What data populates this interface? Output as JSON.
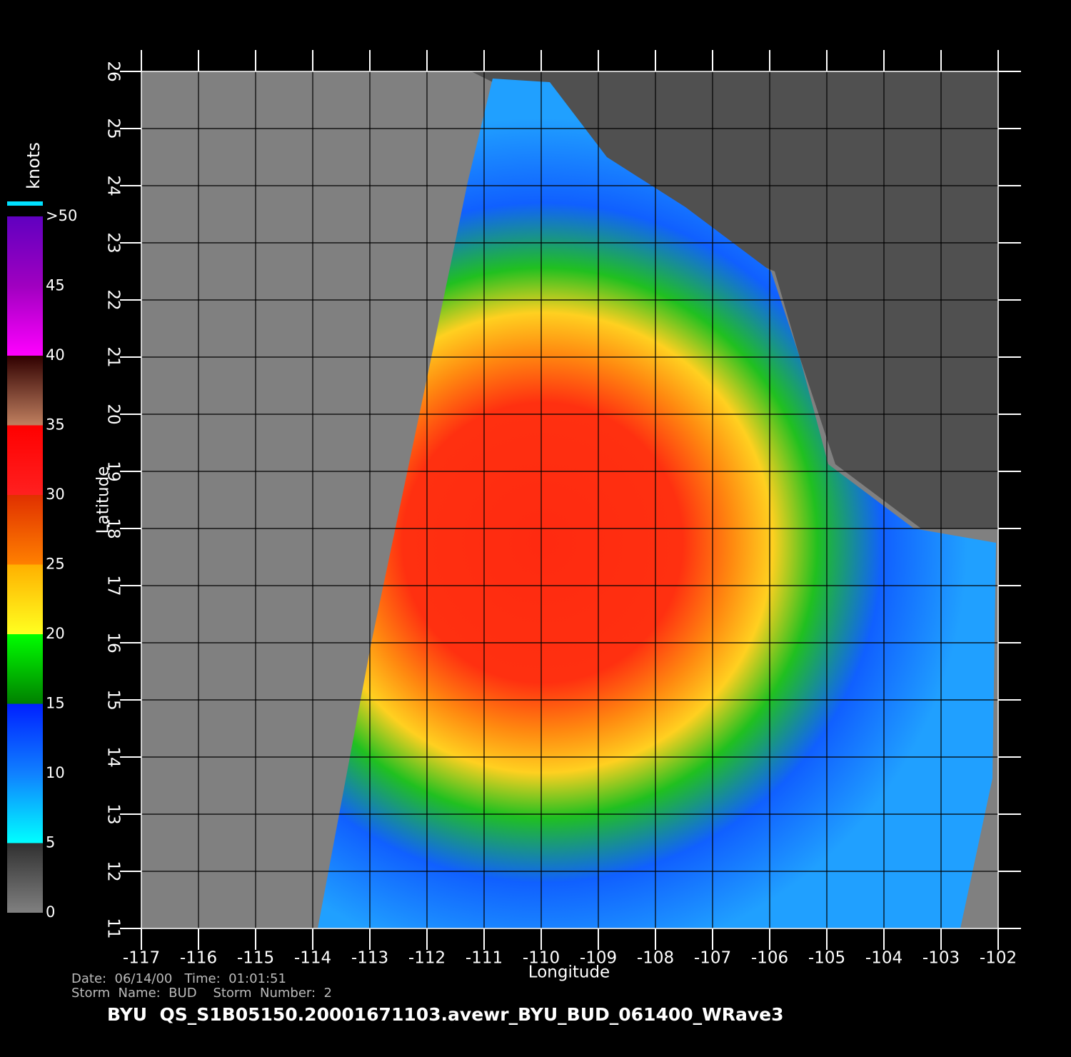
{
  "map": {
    "x_label": "Longitude",
    "y_label": "Latitude",
    "xlim": [
      -117,
      -102
    ],
    "ylim": [
      11,
      26
    ],
    "xticks": [
      -117,
      -116,
      -115,
      -114,
      -113,
      -112,
      -111,
      -110,
      -109,
      -108,
      -107,
      -106,
      -105,
      -104,
      -103,
      -102
    ],
    "yticks": [
      11,
      12,
      13,
      14,
      15,
      16,
      17,
      18,
      19,
      20,
      21,
      22,
      23,
      24,
      25,
      26
    ]
  },
  "colorbar": {
    "title": "knots",
    "range": [
      0,
      50
    ],
    "ticks": [
      0,
      5,
      10,
      15,
      20,
      25,
      30,
      35,
      40,
      45,
      {
        "value": 50,
        "label": ">50"
      }
    ]
  },
  "footer": {
    "date_line": "Date:  06/14/00   Time:  01:01:51",
    "storm_line": "Storm  Name:  BUD    Storm  Number:  2",
    "file_line": "BYU  QS_S1B05150.20001671103.avewr_BYU_BUD_061400_WRave3"
  }
}
